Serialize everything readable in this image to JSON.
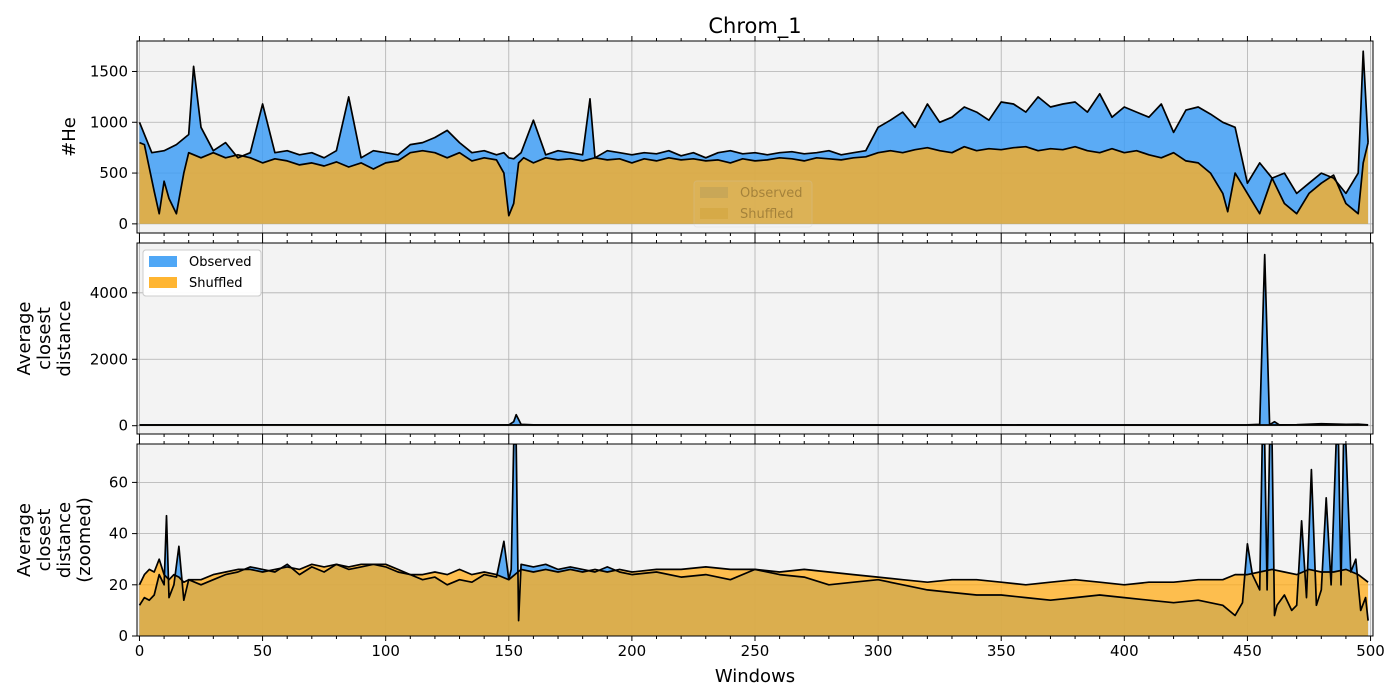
{
  "figure": {
    "title": "Chrom_1",
    "xlabel": "Windows",
    "x_ticks": [
      0,
      50,
      100,
      150,
      200,
      250,
      300,
      350,
      400,
      450,
      500
    ],
    "xlim": [
      -1,
      501
    ]
  },
  "colors": {
    "observed": "#3f9ef5",
    "shuffled": "#ffae1f",
    "overlap": "#c9a347",
    "panel_bg": "#f3f3f3",
    "grid": "#b0b0b0",
    "line": "#000000"
  },
  "legend": {
    "observed_label": "Observed",
    "shuffled_label": "Shuffled"
  },
  "chart_data": [
    {
      "type": "area",
      "ylabel": "#He",
      "ylim": [
        -90,
        1800
      ],
      "y_ticks": [
        0,
        500,
        1000,
        1500
      ],
      "grid": true,
      "legend_position": "lower-center (faded)",
      "series": [
        {
          "name": "Observed",
          "x": [
            0,
            5,
            10,
            15,
            20,
            22,
            25,
            30,
            35,
            40,
            45,
            50,
            55,
            60,
            65,
            70,
            75,
            80,
            85,
            90,
            95,
            100,
            105,
            110,
            115,
            120,
            125,
            130,
            135,
            140,
            145,
            148,
            150,
            152,
            155,
            160,
            165,
            170,
            175,
            180,
            183,
            185,
            190,
            195,
            200,
            205,
            210,
            215,
            220,
            225,
            230,
            235,
            240,
            245,
            250,
            255,
            260,
            265,
            270,
            275,
            280,
            285,
            290,
            295,
            300,
            305,
            310,
            315,
            320,
            325,
            330,
            335,
            340,
            345,
            350,
            355,
            360,
            365,
            370,
            375,
            380,
            385,
            390,
            395,
            400,
            405,
            410,
            415,
            420,
            425,
            430,
            435,
            440,
            445,
            450,
            455,
            460,
            465,
            470,
            475,
            480,
            485,
            490,
            495,
            497,
            499
          ],
          "y": [
            1000,
            700,
            720,
            780,
            880,
            1550,
            950,
            720,
            800,
            650,
            700,
            1180,
            700,
            720,
            680,
            700,
            650,
            720,
            1250,
            650,
            720,
            700,
            680,
            780,
            800,
            850,
            920,
            800,
            700,
            720,
            680,
            700,
            650,
            640,
            700,
            1020,
            680,
            720,
            700,
            680,
            1230,
            650,
            720,
            700,
            680,
            700,
            690,
            720,
            670,
            700,
            650,
            700,
            720,
            690,
            700,
            680,
            700,
            710,
            690,
            700,
            720,
            680,
            700,
            720,
            950,
            1020,
            1100,
            950,
            1180,
            1000,
            1050,
            1150,
            1100,
            1020,
            1200,
            1180,
            1100,
            1250,
            1150,
            1180,
            1200,
            1100,
            1280,
            1050,
            1150,
            1100,
            1050,
            1180,
            900,
            1120,
            1150,
            1080,
            1000,
            950,
            400,
            600,
            450,
            500,
            300,
            400,
            500,
            450,
            300,
            500,
            1700,
            800
          ]
        },
        {
          "name": "Shuffled",
          "x": [
            0,
            2,
            4,
            6,
            8,
            10,
            12,
            15,
            18,
            20,
            25,
            30,
            35,
            40,
            45,
            50,
            55,
            60,
            65,
            70,
            75,
            80,
            85,
            90,
            95,
            100,
            105,
            110,
            115,
            120,
            125,
            130,
            135,
            140,
            145,
            148,
            150,
            152,
            154,
            156,
            160,
            165,
            170,
            175,
            180,
            185,
            190,
            195,
            200,
            205,
            210,
            215,
            220,
            225,
            230,
            235,
            240,
            245,
            250,
            255,
            260,
            265,
            270,
            275,
            280,
            285,
            290,
            295,
            300,
            305,
            310,
            315,
            320,
            325,
            330,
            335,
            340,
            345,
            350,
            355,
            360,
            365,
            370,
            375,
            380,
            385,
            390,
            395,
            400,
            405,
            410,
            415,
            420,
            425,
            430,
            435,
            440,
            442,
            445,
            450,
            455,
            460,
            465,
            470,
            475,
            480,
            485,
            490,
            495,
            497,
            499
          ],
          "y": [
            800,
            780,
            550,
            320,
            100,
            420,
            250,
            100,
            500,
            700,
            650,
            700,
            650,
            680,
            650,
            600,
            640,
            620,
            580,
            600,
            570,
            610,
            560,
            600,
            540,
            600,
            620,
            700,
            720,
            700,
            650,
            700,
            620,
            650,
            630,
            500,
            80,
            200,
            600,
            650,
            600,
            650,
            630,
            640,
            620,
            650,
            630,
            640,
            600,
            640,
            620,
            650,
            630,
            640,
            620,
            630,
            600,
            640,
            620,
            630,
            650,
            640,
            620,
            650,
            640,
            630,
            650,
            660,
            700,
            720,
            700,
            730,
            750,
            720,
            700,
            760,
            720,
            740,
            730,
            750,
            760,
            720,
            740,
            730,
            760,
            720,
            700,
            740,
            700,
            720,
            680,
            650,
            700,
            620,
            600,
            500,
            300,
            120,
            500,
            300,
            100,
            450,
            200,
            100,
            300,
            400,
            480,
            200,
            100,
            600,
            800
          ]
        }
      ]
    },
    {
      "type": "area",
      "ylabel": "Average closest distance",
      "ylim": [
        -250,
        5500
      ],
      "y_ticks": [
        0,
        2000,
        4000
      ],
      "grid": true,
      "legend_position": "upper-left",
      "series": [
        {
          "name": "Observed",
          "x": [
            0,
            50,
            100,
            150,
            152,
            153,
            155,
            160,
            200,
            250,
            300,
            350,
            400,
            450,
            455,
            457,
            459,
            461,
            463,
            470,
            480,
            490,
            495,
            499
          ],
          "y": [
            22,
            25,
            24,
            25,
            120,
            330,
            40,
            24,
            25,
            24,
            22,
            23,
            22,
            25,
            40,
            5150,
            30,
            120,
            25,
            30,
            60,
            40,
            45,
            25
          ]
        },
        {
          "name": "Shuffled",
          "x": [
            0,
            50,
            100,
            150,
            200,
            250,
            300,
            350,
            400,
            450,
            499
          ],
          "y": [
            20,
            25,
            24,
            22,
            25,
            24,
            22,
            20,
            20,
            22,
            20
          ]
        }
      ]
    },
    {
      "type": "area",
      "ylabel": "Average closest distance (zoomed)",
      "ylim": [
        0,
        75
      ],
      "y_ticks": [
        0,
        20,
        40,
        60
      ],
      "grid": true,
      "legend_position": "upper-left",
      "series": [
        {
          "name": "Observed",
          "x": [
            0,
            2,
            4,
            6,
            8,
            10,
            11,
            12,
            14,
            16,
            18,
            20,
            25,
            30,
            35,
            40,
            45,
            50,
            55,
            60,
            65,
            70,
            75,
            80,
            85,
            90,
            95,
            100,
            105,
            110,
            115,
            120,
            125,
            130,
            135,
            140,
            145,
            148,
            150,
            151,
            152,
            153,
            154,
            155,
            160,
            165,
            170,
            175,
            180,
            185,
            190,
            195,
            200,
            210,
            220,
            230,
            240,
            250,
            260,
            270,
            280,
            290,
            300,
            310,
            320,
            330,
            340,
            350,
            360,
            370,
            380,
            390,
            400,
            410,
            420,
            430,
            440,
            445,
            448,
            450,
            452,
            455,
            456,
            457,
            458,
            459,
            460,
            461,
            462,
            465,
            468,
            470,
            472,
            474,
            476,
            478,
            480,
            482,
            484,
            486,
            487,
            488,
            489,
            490,
            492,
            494,
            496,
            498,
            499
          ],
          "y": [
            12,
            15,
            14,
            16,
            24,
            20,
            47,
            15,
            20,
            35,
            14,
            22,
            20,
            22,
            24,
            25,
            27,
            26,
            25,
            28,
            24,
            27,
            25,
            28,
            26,
            27,
            28,
            27,
            25,
            24,
            22,
            23,
            20,
            22,
            21,
            24,
            23,
            37,
            22,
            26,
            100,
            100,
            6,
            28,
            27,
            28,
            26,
            27,
            26,
            25,
            27,
            25,
            24,
            25,
            23,
            24,
            22,
            26,
            24,
            23,
            20,
            21,
            22,
            20,
            18,
            17,
            16,
            16,
            15,
            14,
            15,
            16,
            15,
            14,
            13,
            14,
            12,
            8,
            13,
            36,
            24,
            18,
            100,
            100,
            18,
            100,
            100,
            8,
            12,
            16,
            10,
            12,
            45,
            15,
            65,
            12,
            18,
            54,
            20,
            100,
            100,
            20,
            100,
            100,
            25,
            30,
            10,
            15,
            6
          ],
          "fills": [
            {
              "from": 0,
              "to": 9,
              "value": 12
            },
            {
              "from": 10,
              "to": 12,
              "value": 47
            },
            {
              "from": 13,
              "to": 148,
              "value": 20
            }
          ]
        },
        {
          "name": "Shuffled",
          "x": [
            0,
            2,
            4,
            6,
            8,
            10,
            12,
            14,
            16,
            18,
            20,
            25,
            30,
            35,
            40,
            45,
            50,
            55,
            60,
            65,
            70,
            75,
            80,
            85,
            90,
            95,
            100,
            105,
            110,
            115,
            120,
            125,
            130,
            135,
            140,
            145,
            150,
            155,
            160,
            165,
            170,
            175,
            180,
            185,
            190,
            195,
            200,
            210,
            220,
            230,
            240,
            250,
            260,
            270,
            280,
            290,
            300,
            310,
            320,
            330,
            340,
            350,
            360,
            370,
            380,
            390,
            400,
            410,
            420,
            430,
            440,
            445,
            450,
            455,
            460,
            465,
            470,
            475,
            480,
            485,
            490,
            495,
            499
          ],
          "y": [
            20,
            24,
            26,
            25,
            30,
            24,
            22,
            24,
            23,
            21,
            22,
            22,
            24,
            25,
            26,
            26,
            25,
            26,
            27,
            26,
            28,
            27,
            28,
            27,
            28,
            28,
            28,
            26,
            24,
            24,
            25,
            24,
            26,
            24,
            25,
            24,
            22,
            26,
            25,
            26,
            25,
            26,
            25,
            26,
            25,
            26,
            25,
            26,
            26,
            27,
            26,
            26,
            25,
            26,
            25,
            24,
            23,
            22,
            21,
            22,
            22,
            21,
            20,
            21,
            22,
            21,
            20,
            21,
            21,
            22,
            22,
            24,
            24,
            25,
            26,
            25,
            24,
            26,
            25,
            25,
            26,
            24,
            21
          ]
        }
      ]
    }
  ]
}
